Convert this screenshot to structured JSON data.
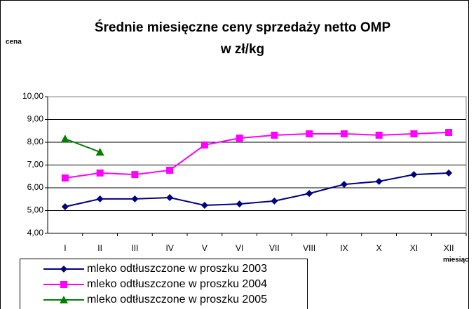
{
  "chart_data": {
    "type": "line",
    "title": "Średnie miesięczne ceny sprzedaży netto OMP",
    "subtitle": "w zł/kg",
    "y_label": "cena",
    "x_label": "miesiąc",
    "categories": [
      "I",
      "II",
      "III",
      "IV",
      "V",
      "VI",
      "VII",
      "VIII",
      "IX",
      "X",
      "XI",
      "XII"
    ],
    "series": [
      {
        "name": "mleko odtłuszczone w  proszku 2003",
        "color": "#000080",
        "marker": "diamond",
        "values": [
          5.17,
          5.51,
          5.51,
          5.57,
          5.23,
          5.29,
          5.42,
          5.75,
          6.15,
          6.28,
          6.58,
          6.65
        ]
      },
      {
        "name": "mleko odtłuszczone w  proszku 2004",
        "color": "#ff00ff",
        "marker": "square",
        "values": [
          6.43,
          6.65,
          6.58,
          6.77,
          7.88,
          8.18,
          8.31,
          8.37,
          8.37,
          8.31,
          8.37,
          8.43
        ]
      },
      {
        "name": "mleko odtłuszczone w  proszku 2005",
        "color": "#008000",
        "marker": "triangle",
        "values": [
          8.15,
          7.57,
          null,
          null,
          null,
          null,
          null,
          null,
          null,
          null,
          null,
          null
        ]
      }
    ],
    "ylim": [
      4,
      10
    ],
    "yticks": [
      {
        "value": 4,
        "label": "4,00"
      },
      {
        "value": 5,
        "label": "5,00"
      },
      {
        "value": 6,
        "label": "6,00"
      },
      {
        "value": 7,
        "label": "7,00"
      },
      {
        "value": 8,
        "label": "8,00"
      },
      {
        "value": 9,
        "label": "9,00"
      },
      {
        "value": 10,
        "label": "10,00"
      }
    ],
    "grid": true,
    "legend": "bottom-left"
  }
}
